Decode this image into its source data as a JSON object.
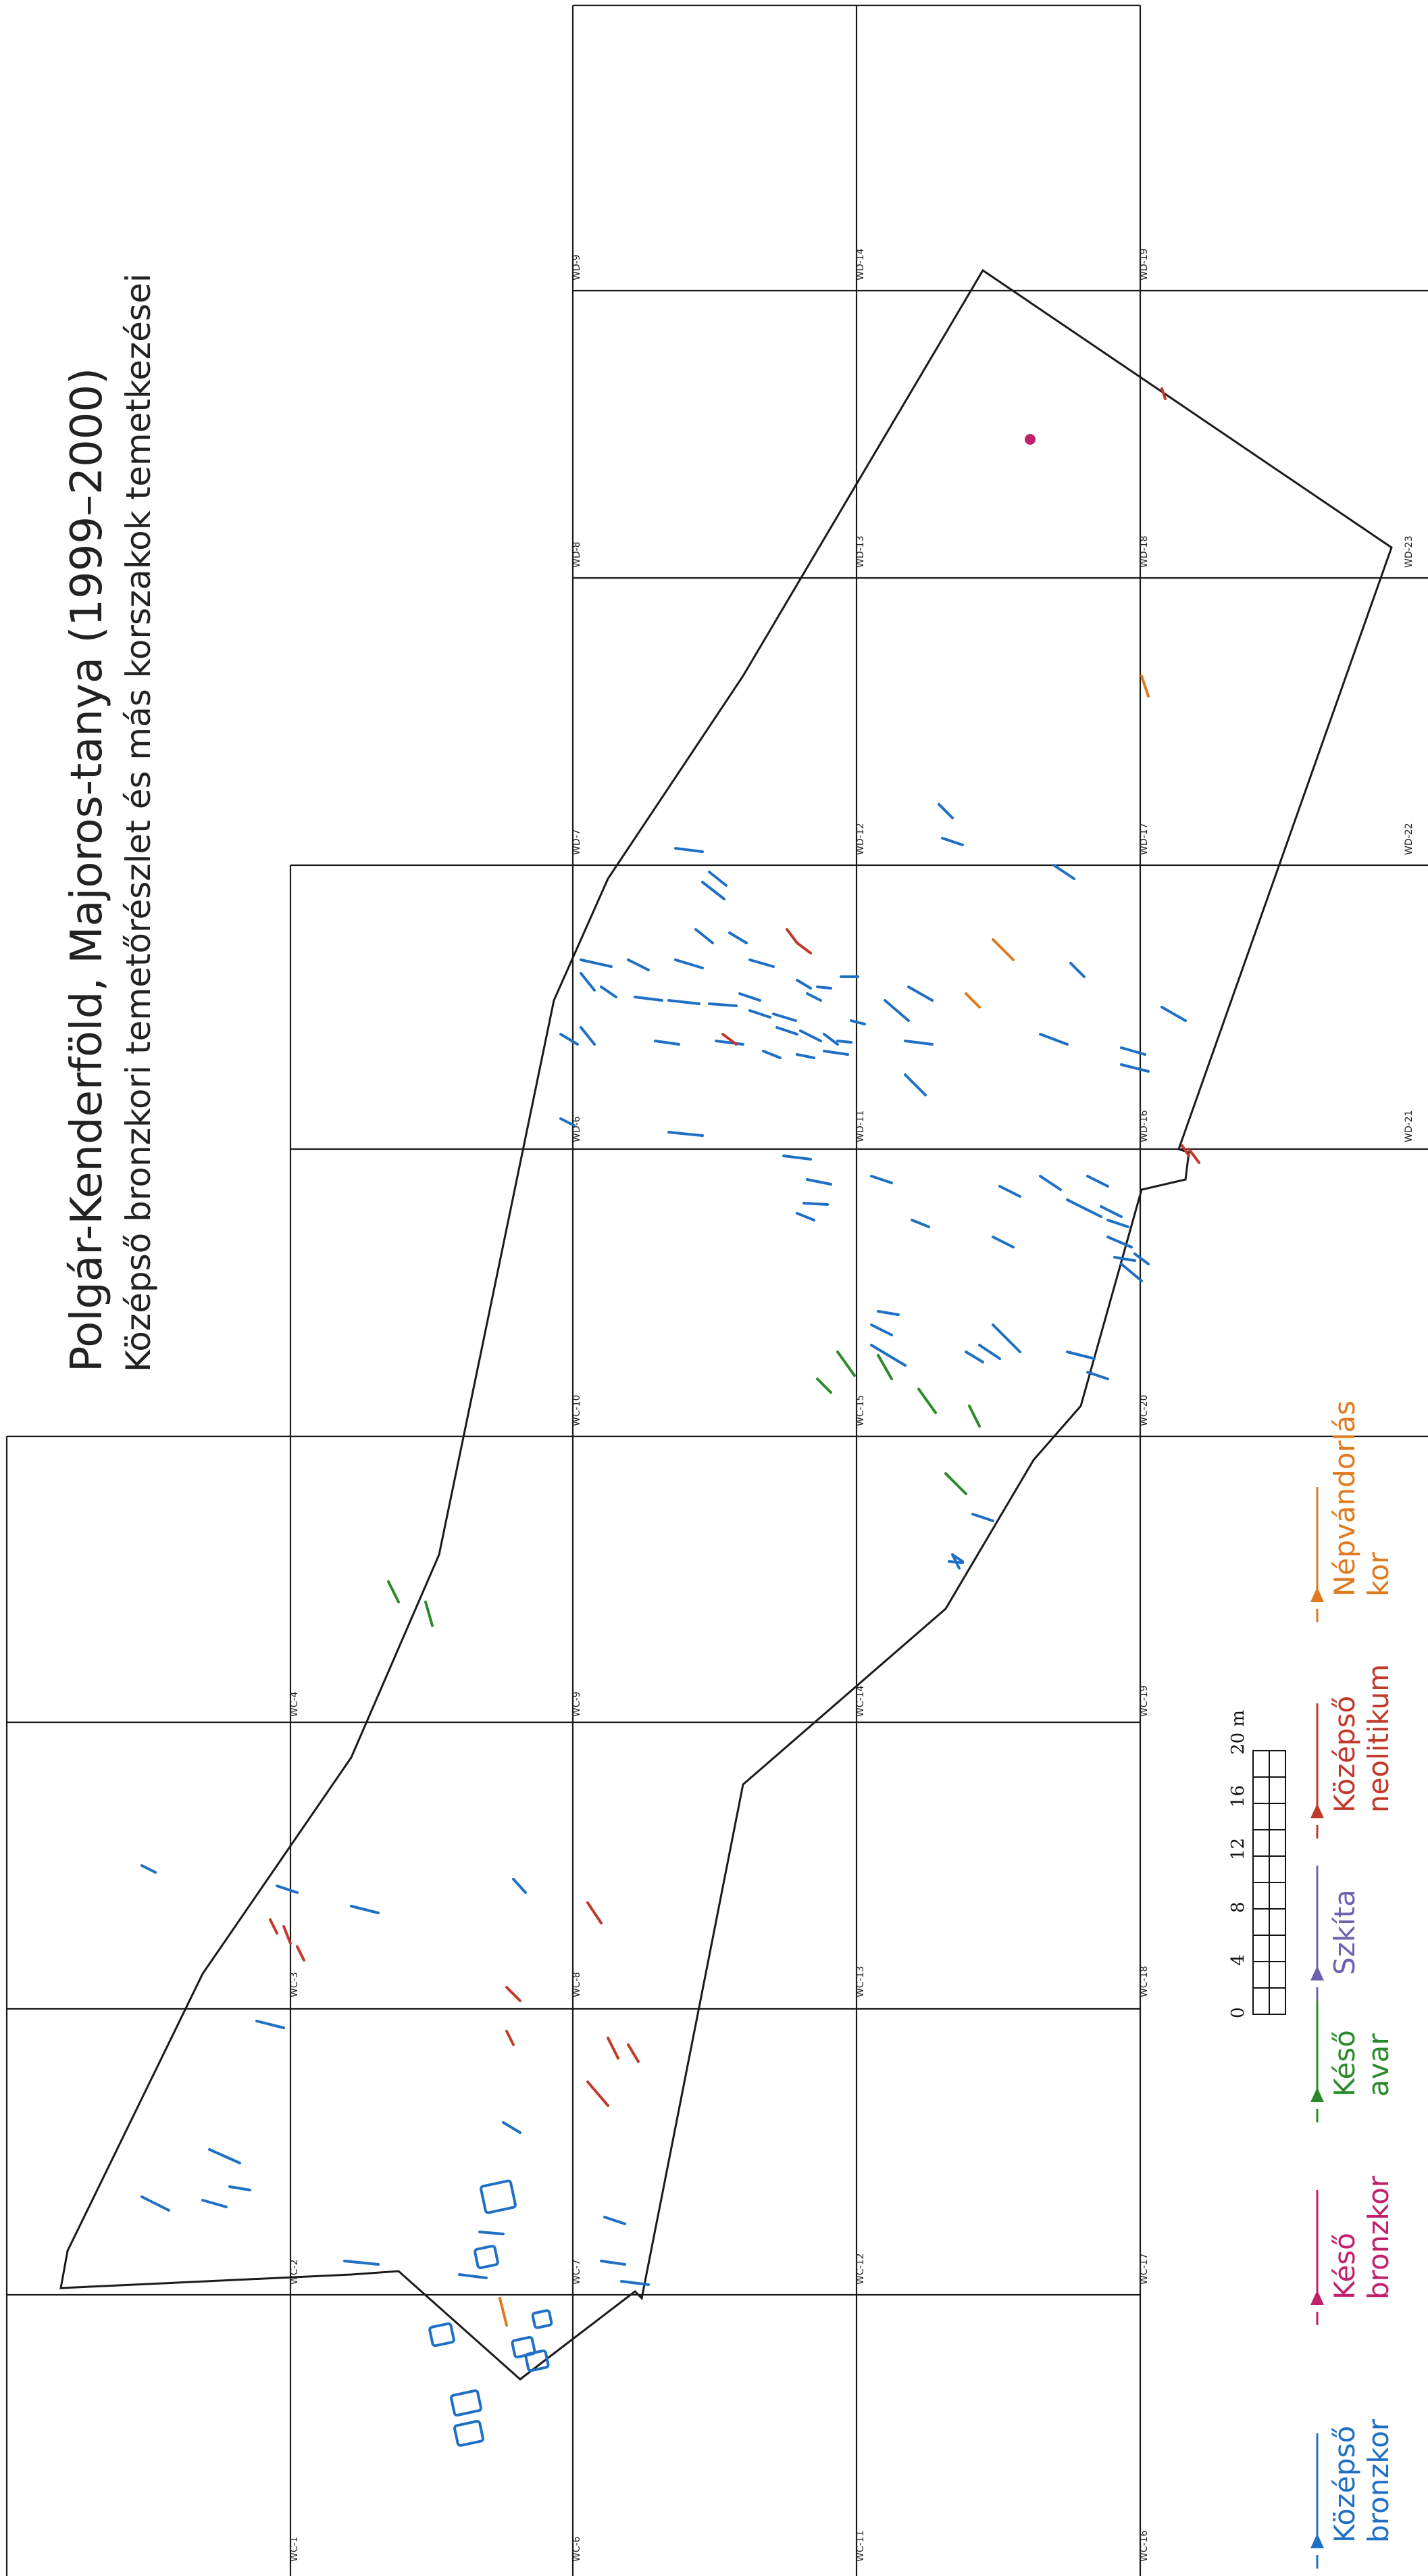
{
  "title": {
    "main": "Polgár-Kenderföld, Majoros-tanya (1999–2000)",
    "sub": "Középső bronzkori temetőrészlet és más korszakok temetkezései"
  },
  "colors": {
    "kozepso_bronzkor": "#1f6fc4",
    "keso_bronzkor": "#c2206a",
    "keso_avar": "#2a8a2a",
    "szkita": "#6f61b0",
    "kozepso_neolitikum": "#c0392b",
    "nepvandorlas_kor": "#e07a1f",
    "grid": "#1a1a1a"
  },
  "legend": [
    {
      "key": "kozepso_bronzkor",
      "line1": "Középső",
      "line2": "bronzkor",
      "arrow": "arrow-blue-icon"
    },
    {
      "key": "keso_bronzkor",
      "line1": "Késő",
      "line2": "bronzkor",
      "arrow": "arrow-magenta-icon"
    },
    {
      "key": "keso_avar",
      "line1": "Késő",
      "line2": "avar",
      "arrow": "arrow-green-icon"
    },
    {
      "key": "szkita",
      "line1": "Szkíta",
      "line2": "",
      "arrow": "arrow-purple-icon"
    },
    {
      "key": "kozepso_neolitikum",
      "line1": "Középső",
      "line2": "neolitikum",
      "arrow": "arrow-red-icon"
    },
    {
      "key": "nepvandorlas_kor",
      "line1": "Népvándorlás",
      "line2": "kor",
      "arrow": "arrow-orange-icon"
    }
  ],
  "scale": {
    "ticks": [
      "0",
      "4",
      "8",
      "12",
      "16",
      "20 m"
    ]
  },
  "grid_labels": {
    "row_wc_a": [
      "WC-1",
      "WC-2",
      "WC-3",
      "WC-4"
    ],
    "row_wc_b": [
      "WC-6",
      "WC-7",
      "WC-8",
      "WC-9",
      "WC-10"
    ],
    "row_wc_c": [
      "WC-11",
      "WC-12",
      "WC-13",
      "WC-14",
      "WC-15"
    ],
    "row_wc_d": [
      "WC-16",
      "WC-17",
      "WC-18",
      "WC-19",
      "WC-20"
    ],
    "row_wd_a": [
      "WD-6",
      "WD-7",
      "WD-8",
      "WD-9"
    ],
    "row_wd_b": [
      "WD-11",
      "WD-12",
      "WD-13",
      "WD-14"
    ],
    "row_wd_c": [
      "WD-16",
      "WD-17",
      "WD-18",
      "WD-19"
    ],
    "row_wd_d": [
      "WD-21",
      "WD-22",
      "WD-23"
    ]
  }
}
